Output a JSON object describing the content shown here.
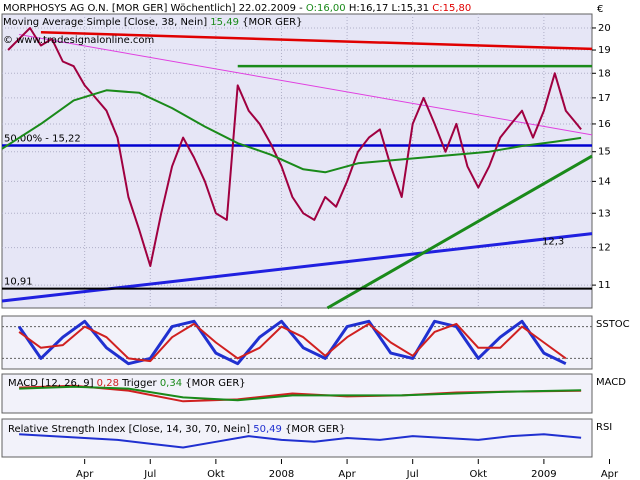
{
  "chart_data": [
    {
      "type": "line",
      "title": "MORPHOSYS AG O.N. [MOR GER]  Wöchentlich] 22.02.2009 -",
      "ohlc": {
        "open": "O:16,00",
        "high_low": "H:16,17 L:15,31",
        "close": "C:15,80"
      },
      "copyright": "© www.tradesignalonline.com",
      "currency": "€",
      "log": true,
      "grid": true,
      "background": "#e6e6f6",
      "xlim": [
        -0.78,
        26.2
      ],
      "xticks": [
        {
          "value": 3,
          "label": "Apr"
        },
        {
          "value": 6,
          "label": "Jul"
        },
        {
          "value": 9,
          "label": "Okt"
        },
        {
          "value": 12,
          "label": "2008"
        },
        {
          "value": 15,
          "label": "Apr"
        },
        {
          "value": 18,
          "label": "Jul"
        },
        {
          "value": 21,
          "label": "Okt"
        },
        {
          "value": 24,
          "label": "2009"
        },
        {
          "value": 27,
          "label": "Apr"
        }
      ],
      "ylim": [
        10.43,
        20.66
      ],
      "yticks": [
        11,
        12,
        13,
        14,
        15,
        16,
        17,
        18,
        19,
        20
      ],
      "x": [
        -0.5,
        0,
        0.5,
        1,
        1.5,
        2,
        2.5,
        3,
        3.5,
        4,
        4.5,
        5,
        5.5,
        6,
        6.5,
        7,
        7.5,
        8,
        8.5,
        9,
        9.5,
        10,
        10.5,
        11,
        11.5,
        12,
        12.5,
        13,
        13.5,
        14,
        14.5,
        15,
        15.5,
        16,
        16.5,
        17,
        17.5,
        18,
        18.5,
        19,
        19.5,
        20,
        20.5,
        21,
        21.5,
        22,
        22.5,
        23,
        23.5,
        24,
        24.5,
        25,
        25.5,
        25.7
      ],
      "series": [
        {
          "color": "#a00040",
          "values": [
            19.0,
            19.5,
            20.0,
            19.2,
            19.5,
            18.5,
            18.3,
            17.5,
            17.0,
            16.5,
            15.5,
            13.5,
            12.5,
            11.5,
            13.0,
            14.5,
            15.5,
            14.8,
            14.0,
            13.0,
            12.8,
            17.5,
            16.5,
            16.0,
            15.3,
            14.5,
            13.5,
            13.0,
            12.8,
            13.5,
            13.2,
            14.0,
            15.0,
            15.5,
            15.8,
            14.5,
            13.5,
            16.0,
            17.0,
            16.0,
            15.0,
            16.0,
            14.5,
            13.8,
            14.5,
            15.5,
            16.0,
            16.5,
            15.5,
            16.5,
            18.0,
            16.5,
            16.0,
            15.8
          ]
        },
        {
          "name": "Moving Average Simple [Close, 38, Nein]",
          "last": "15,49",
          "source": "{MOR GER}",
          "color": "#1a8a1a",
          "x": [
            -0.78,
            1,
            2.5,
            4,
            5.5,
            7,
            8.5,
            10,
            11.5,
            13,
            14,
            15.5,
            17,
            18.5,
            20,
            21.5,
            23,
            24.5,
            25.7
          ],
          "values": [
            15.1,
            16.0,
            16.9,
            17.3,
            17.2,
            16.6,
            15.9,
            15.3,
            14.9,
            14.4,
            14.3,
            14.6,
            14.7,
            14.8,
            14.9,
            15.0,
            15.2,
            15.35,
            15.49
          ]
        }
      ],
      "annotations": [
        {
          "color": "#e00000",
          "width": 2.5,
          "x": [
            1,
            26.2
          ],
          "y": [
            19.8,
            19.05
          ]
        },
        {
          "color": "#e040e0",
          "width": 1,
          "x": [
            0,
            26.2
          ],
          "y": [
            19.7,
            15.6
          ]
        },
        {
          "color": "#1a8a1a",
          "width": 2.5,
          "x": [
            10,
            26.2
          ],
          "y": [
            18.3,
            18.3
          ]
        },
        {
          "color": "#0000d0",
          "width": 2.5,
          "x": [
            -0.78,
            26.2
          ],
          "y": [
            15.22,
            15.22
          ],
          "label": "50,00% - 15,22",
          "label_side": "left"
        },
        {
          "color": "#2020e0",
          "width": 3,
          "x": [
            -0.78,
            26.2
          ],
          "y": [
            10.6,
            12.4
          ],
          "label": "12,3",
          "label_side": "right"
        },
        {
          "color": "#1a8a1a",
          "width": 3,
          "x": [
            14.1,
            26.2
          ],
          "y": [
            10.43,
            14.85
          ]
        },
        {
          "color": "#000000",
          "width": 2,
          "x": [
            -0.78,
            26.2
          ],
          "y": [
            10.91,
            10.91
          ],
          "label": "10,91",
          "label_side": "left"
        }
      ]
    },
    {
      "type": "line",
      "label": "SSTOC",
      "xlim": [
        -0.78,
        26.2
      ],
      "ylim": [
        0,
        100
      ],
      "levels": [
        20,
        80
      ],
      "background": "#f2f2fa",
      "x": [
        0,
        1,
        2,
        3,
        4,
        5,
        6,
        7,
        8,
        9,
        10,
        11,
        12,
        13,
        14,
        15,
        16,
        17,
        18,
        19,
        20,
        21,
        22,
        23,
        24,
        25
      ],
      "series": [
        {
          "color": "#2030d0",
          "values": [
            80,
            20,
            60,
            90,
            40,
            10,
            20,
            80,
            90,
            30,
            10,
            60,
            90,
            40,
            20,
            80,
            90,
            30,
            20,
            90,
            80,
            20,
            60,
            90,
            30,
            10
          ]
        },
        {
          "color": "#d02020",
          "values": [
            70,
            40,
            45,
            80,
            60,
            20,
            15,
            60,
            85,
            50,
            20,
            40,
            80,
            60,
            25,
            60,
            85,
            50,
            25,
            70,
            85,
            40,
            40,
            80,
            50,
            20
          ]
        }
      ]
    },
    {
      "type": "line",
      "label": "MACD",
      "title": "MACD [12, 26, 9]",
      "source": "{MOR GER}",
      "xlim": [
        -0.78,
        26.2
      ],
      "ylim": [
        -2,
        2
      ],
      "background": "#f2f2fa",
      "x": [
        0,
        2.5,
        5,
        7.5,
        10,
        12.5,
        15,
        17.5,
        20,
        22.5,
        25.7
      ],
      "series": [
        {
          "color": "#d02020",
          "last": "0,28",
          "values": [
            0.6,
            0.8,
            0.3,
            -0.8,
            -0.6,
            0,
            -0.3,
            -0.2,
            0.1,
            0.2,
            0.28
          ]
        },
        {
          "name": "Trigger",
          "color": "#1a8a1a",
          "last": "0,34",
          "values": [
            0.5,
            0.7,
            0.5,
            -0.4,
            -0.7,
            -0.2,
            -0.2,
            -0.2,
            0,
            0.2,
            0.34
          ]
        }
      ]
    },
    {
      "type": "line",
      "label": "RSI",
      "xlim": [
        -0.78,
        26.2
      ],
      "ylim": [
        0,
        100
      ],
      "background": "#f2f2fa",
      "x": [
        0,
        1.5,
        3,
        4.5,
        6,
        7.5,
        9,
        10.5,
        12,
        13.5,
        15,
        16.5,
        18,
        19.5,
        21,
        22.5,
        24,
        25.7
      ],
      "series": [
        {
          "name": "Relative Strength Index [Close, 14, 30, 70, Nein]",
          "last": "50,49",
          "source": "{MOR GER}",
          "color": "#2030d0",
          "values": [
            60,
            55,
            50,
            45,
            35,
            25,
            40,
            55,
            45,
            40,
            50,
            45,
            55,
            50,
            45,
            55,
            60,
            50.49
          ]
        }
      ]
    }
  ]
}
